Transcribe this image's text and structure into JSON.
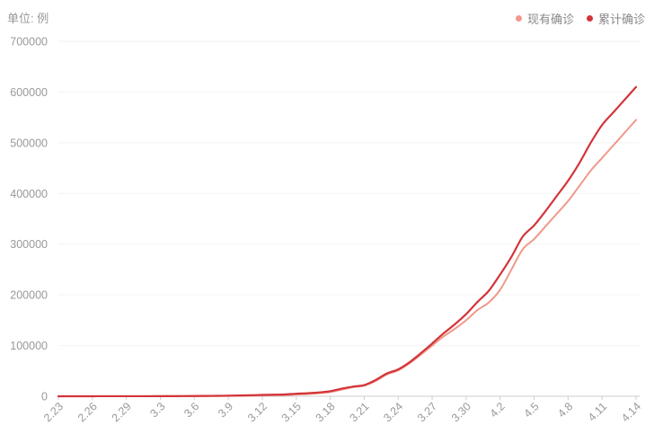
{
  "unit_label": "单位: 例",
  "legend": [
    {
      "name": "现有确诊",
      "color": "#f0998a"
    },
    {
      "name": "累计确诊",
      "color": "#d3343a"
    }
  ],
  "chart_data": {
    "type": "line",
    "ylim": [
      0,
      700000
    ],
    "y_ticks": [
      0,
      100000,
      200000,
      300000,
      400000,
      500000,
      600000,
      700000
    ],
    "x_tick_labels": [
      "2.23",
      "2.26",
      "2.29",
      "3.3",
      "3.6",
      "3.9",
      "3.12",
      "3.15",
      "3.18",
      "3.21",
      "3.24",
      "3.27",
      "3.30",
      "4.2",
      "4.5",
      "4.8",
      "4.11",
      "4.14"
    ],
    "x": [
      "2.23",
      "2.24",
      "2.25",
      "2.26",
      "2.27",
      "2.28",
      "2.29",
      "3.1",
      "3.2",
      "3.3",
      "3.4",
      "3.5",
      "3.6",
      "3.7",
      "3.8",
      "3.9",
      "3.10",
      "3.11",
      "3.12",
      "3.13",
      "3.14",
      "3.15",
      "3.16",
      "3.17",
      "3.18",
      "3.19",
      "3.20",
      "3.21",
      "3.22",
      "3.23",
      "3.24",
      "3.25",
      "3.26",
      "3.27",
      "3.28",
      "3.29",
      "3.30",
      "3.31",
      "4.1",
      "4.2",
      "4.3",
      "4.4",
      "4.5",
      "4.6",
      "4.7",
      "4.8",
      "4.9",
      "4.10",
      "4.11",
      "4.12",
      "4.13",
      "4.14"
    ],
    "series": [
      {
        "name": "现有确诊",
        "color": "#f0998a",
        "values": [
          30,
          30,
          40,
          50,
          60,
          60,
          60,
          70,
          90,
          110,
          150,
          200,
          250,
          400,
          500,
          600,
          900,
          1200,
          1600,
          1900,
          2200,
          3500,
          4500,
          6000,
          8500,
          13000,
          18000,
          21000,
          30000,
          43000,
          51000,
          65000,
          82000,
          100000,
          118000,
          133000,
          150000,
          170000,
          185000,
          210000,
          250000,
          290000,
          310000,
          335000,
          360000,
          385000,
          415000,
          445000,
          470000,
          495000,
          520000,
          545000
        ]
      },
      {
        "name": "累计确诊",
        "color": "#d3343a",
        "values": [
          35,
          40,
          50,
          60,
          70,
          80,
          100,
          120,
          150,
          200,
          250,
          300,
          500,
          700,
          900,
          1200,
          1600,
          2000,
          2600,
          3100,
          3600,
          5000,
          6000,
          7500,
          10000,
          15000,
          19000,
          22000,
          32000,
          45000,
          53000,
          67000,
          85000,
          104000,
          124000,
          142000,
          162000,
          186000,
          208000,
          240000,
          275000,
          315000,
          337000,
          365000,
          395000,
          425000,
          460000,
          500000,
          535000,
          560000,
          585000,
          610000
        ]
      }
    ],
    "grid": true,
    "legend_position": "top-right"
  }
}
